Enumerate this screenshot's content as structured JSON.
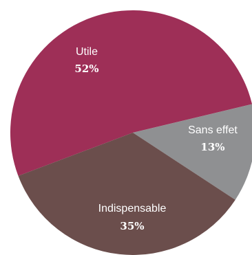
{
  "chart_data": {
    "type": "pie",
    "title": "",
    "slices": [
      {
        "label": "Utile",
        "value": 52,
        "value_text": "52%",
        "color": "#9E2F57"
      },
      {
        "label": "Sans effet",
        "value": 13,
        "value_text": "13%",
        "color": "#8F9092"
      },
      {
        "label": "Indispensable",
        "value": 35,
        "value_text": "35%",
        "color": "#6B4E4C"
      }
    ]
  }
}
